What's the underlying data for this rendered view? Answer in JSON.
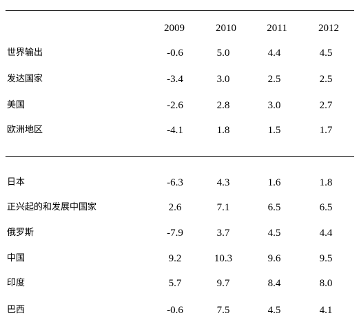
{
  "table": {
    "header": [
      "2009",
      "2010",
      "2011",
      "2012"
    ],
    "sections": [
      {
        "rows": [
          {
            "label": "世界输出",
            "values": [
              "-0.6",
              "5.0",
              "4.4",
              "4.5"
            ]
          },
          {
            "label": "发达国家",
            "values": [
              "-3.4",
              "3.0",
              "2.5",
              "2.5"
            ]
          },
          {
            "label": "美国",
            "values": [
              "-2.6",
              "2.8",
              "3.0",
              "2.7"
            ]
          },
          {
            "label": "欧洲地区",
            "values": [
              "-4.1",
              "1.8",
              "1.5",
              "1.7"
            ]
          }
        ]
      },
      {
        "rows": [
          {
            "label": "日本",
            "values": [
              "-6.3",
              "4.3",
              "1.6",
              "1.8"
            ]
          },
          {
            "label": "正兴起的和发展中国家",
            "values": [
              "2.6",
              "7.1",
              "6.5",
              "6.5"
            ]
          },
          {
            "label": "俄罗斯",
            "values": [
              "-7.9",
              "3.7",
              "4.5",
              "4.4"
            ]
          },
          {
            "label": "中国",
            "values": [
              "9.2",
              "10.3",
              "9.6",
              "9.5"
            ]
          },
          {
            "label": "印度",
            "values": [
              "5.7",
              "9.7",
              "8.4",
              "8.0"
            ]
          },
          {
            "label": "巴西",
            "values": [
              "-0.6",
              "7.5",
              "4.5",
              "4.1"
            ]
          }
        ]
      }
    ]
  }
}
